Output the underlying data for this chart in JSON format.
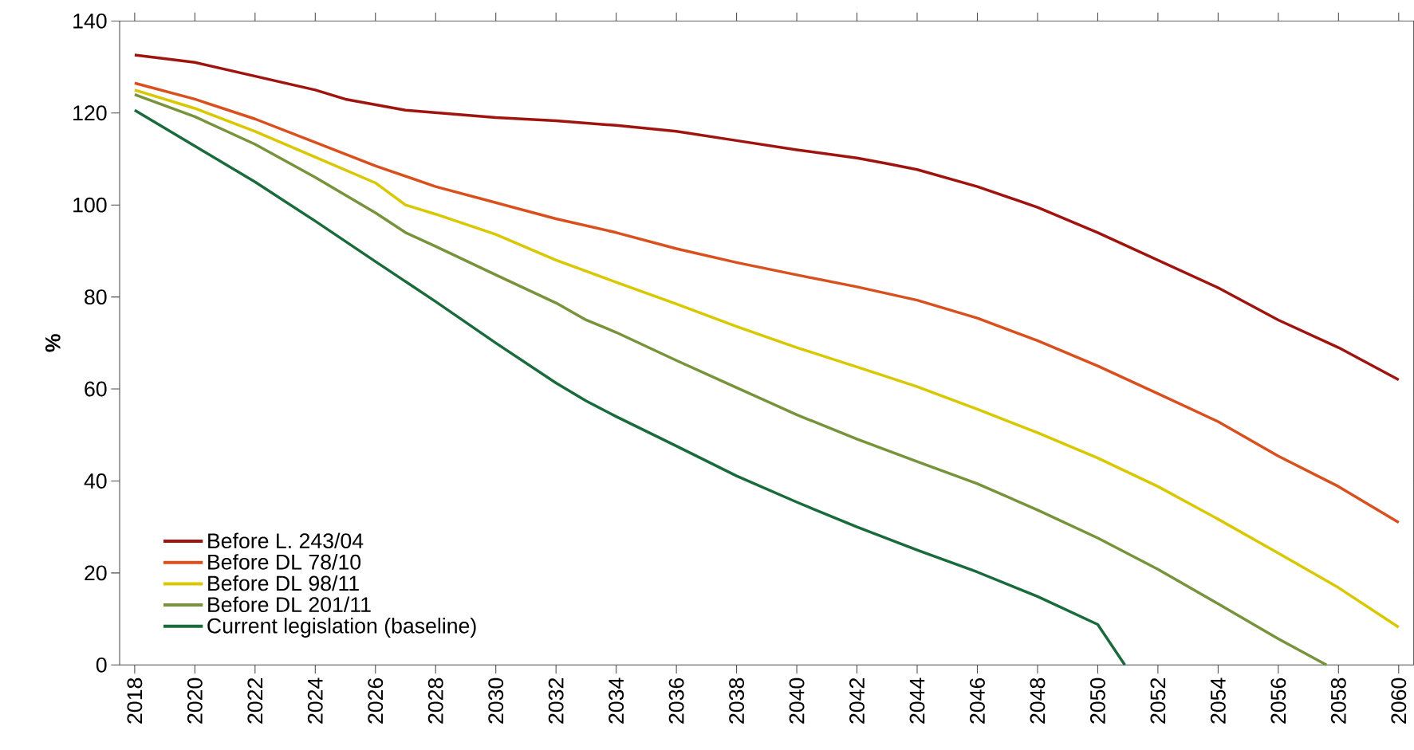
{
  "chart_data": {
    "type": "line",
    "ylabel": "%",
    "ylim": [
      0,
      140
    ],
    "yticks": [
      0,
      20,
      40,
      60,
      80,
      100,
      120,
      140
    ],
    "xlim": [
      2017.5,
      2060.5
    ],
    "xticks": [
      2018,
      2020,
      2022,
      2024,
      2026,
      2028,
      2030,
      2032,
      2034,
      2036,
      2038,
      2040,
      2042,
      2044,
      2046,
      2048,
      2050,
      2052,
      2054,
      2056,
      2058,
      2060
    ],
    "legend": "bottom left",
    "series": [
      {
        "name": "Before L. 243/04",
        "color": "#a0140f",
        "x": [
          2018,
          2020,
          2022,
          2024,
          2025,
          2027,
          2030,
          2032,
          2034,
          2036,
          2038,
          2040,
          2042,
          2043,
          2044,
          2046,
          2048,
          2050,
          2052,
          2054,
          2056,
          2058,
          2060
        ],
        "values": [
          132.6,
          131,
          128,
          125,
          123,
          120.6,
          119,
          118.3,
          117.3,
          116,
          114,
          112,
          110.2,
          109,
          107.7,
          104,
          99.5,
          94,
          88,
          82,
          75,
          69,
          62
        ]
      },
      {
        "name": "Before DL 78/10",
        "color": "#d9501f",
        "x": [
          2018,
          2020,
          2022,
          2024,
          2026,
          2028,
          2030,
          2032,
          2034,
          2036,
          2038,
          2040,
          2042,
          2044,
          2046,
          2048,
          2050,
          2052,
          2054,
          2056,
          2058,
          2060
        ],
        "values": [
          126.5,
          123,
          118.7,
          113.6,
          108.5,
          104,
          100.5,
          97,
          94,
          90.5,
          87.5,
          84.8,
          82.2,
          79.3,
          75.4,
          70.5,
          65,
          59,
          52.9,
          45.4,
          38.8,
          31
        ]
      },
      {
        "name": "Before DL 98/11",
        "color": "#d9c800",
        "x": [
          2018,
          2020,
          2022,
          2024,
          2026,
          2027,
          2028,
          2030,
          2032,
          2034,
          2036,
          2038,
          2040,
          2042,
          2044,
          2046,
          2048,
          2050,
          2052,
          2054,
          2056,
          2058,
          2060
        ],
        "values": [
          125,
          121,
          116,
          110.4,
          104.8,
          100,
          98,
          93.6,
          88,
          83.2,
          78.5,
          73.6,
          69,
          64.8,
          60.5,
          55.6,
          50.5,
          45,
          38.8,
          31.7,
          24.3,
          16.8,
          8.2
        ]
      },
      {
        "name": "Before DL 201/11",
        "color": "#77933c",
        "x": [
          2018,
          2020,
          2022,
          2024,
          2026,
          2027,
          2028,
          2030,
          2032,
          2033,
          2034,
          2036,
          2038,
          2040,
          2042,
          2044,
          2046,
          2048,
          2050,
          2052,
          2054,
          2056,
          2057.6
        ],
        "values": [
          124,
          119.2,
          113.2,
          106,
          98.3,
          94,
          91,
          84.8,
          78.7,
          75,
          72.3,
          66.2,
          60.3,
          54.4,
          49.1,
          44.2,
          39.4,
          33.7,
          27.6,
          20.8,
          13.3,
          5.7,
          0
        ]
      },
      {
        "name": "Current legislation (baseline)",
        "color": "#1a6b3c",
        "x": [
          2018,
          2020,
          2022,
          2024,
          2026,
          2028,
          2030,
          2032,
          2033,
          2034,
          2036,
          2038,
          2040,
          2042,
          2044,
          2046,
          2048,
          2050,
          2050.9
        ],
        "values": [
          120.6,
          112.8,
          105,
          96.5,
          87.7,
          79,
          70,
          61.3,
          57.4,
          54,
          47.6,
          41.1,
          35.4,
          30,
          25,
          20.2,
          14.9,
          8.8,
          0
        ]
      }
    ]
  }
}
